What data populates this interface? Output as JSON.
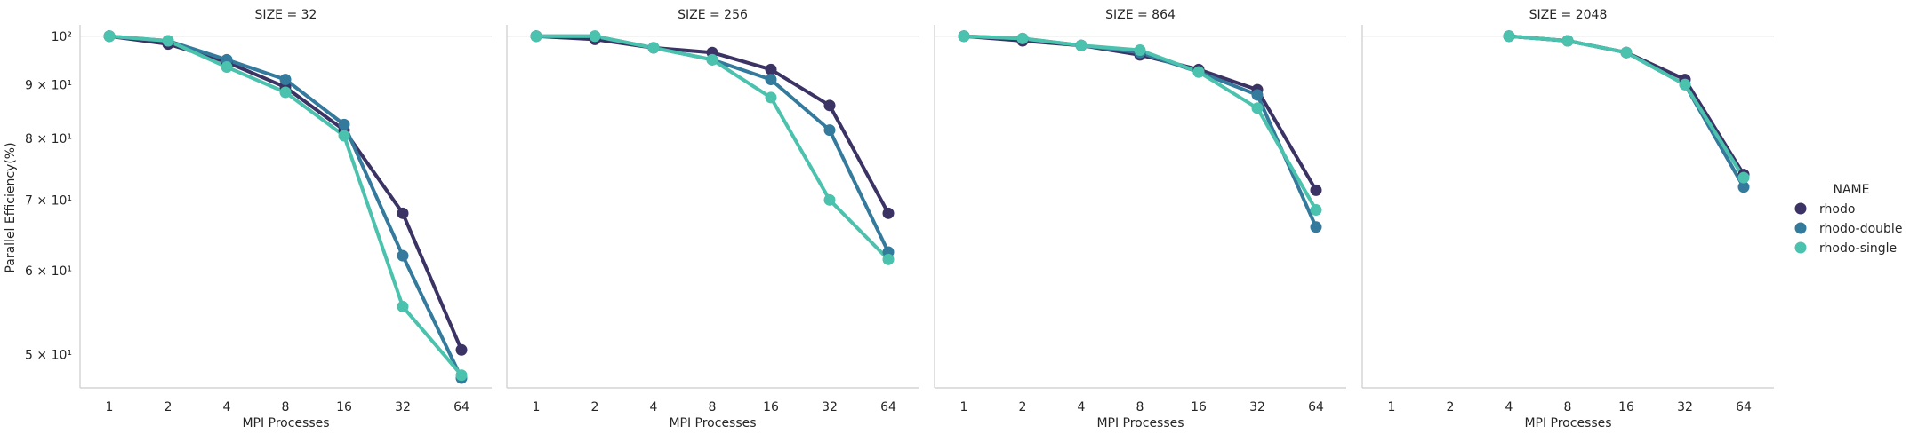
{
  "figure": {
    "ylabel": "Parallel Efficiency(%)",
    "legend_title": "NAME",
    "legend_placement": "right"
  },
  "chart_data": {
    "type": "line",
    "facet_variable": "SIZE",
    "categories": [
      "1",
      "2",
      "4",
      "8",
      "16",
      "32",
      "64"
    ],
    "xlabel": "MPI Processes",
    "ylabel": "Parallel Efficiency(%)",
    "yscale": "log",
    "ylim": [
      46.5,
      102.5
    ],
    "y_ticks": [
      {
        "value": 50,
        "label": "5 × 10¹"
      },
      {
        "value": 60,
        "label": "6 × 10¹"
      },
      {
        "value": 70,
        "label": "7 × 10¹"
      },
      {
        "value": 80,
        "label": "8 × 10¹"
      },
      {
        "value": 90,
        "label": "9 × 10¹"
      },
      {
        "value": 100,
        "label": "10²"
      }
    ],
    "grid": "horizontal-major",
    "series_colors": {
      "rhodo": "#3b3364",
      "rhodo-double": "#337a9c",
      "rhodo-single": "#4bc2ad"
    },
    "panels": [
      {
        "title": "SIZE = 32",
        "series": [
          {
            "name": "rhodo",
            "values": [
              100,
              98.3,
              94.5,
              89.5,
              81.5,
              68.0,
              50.5
            ]
          },
          {
            "name": "rhodo-double",
            "values": [
              100,
              99.0,
              95.0,
              91.0,
              82.5,
              62.0,
              47.5
            ]
          },
          {
            "name": "rhodo-single",
            "values": [
              100,
              99.0,
              93.5,
              88.5,
              80.5,
              55.5,
              47.8
            ]
          }
        ]
      },
      {
        "title": "SIZE = 256",
        "series": [
          {
            "name": "rhodo",
            "values": [
              100,
              99.3,
              97.5,
              96.5,
              93.0,
              86.0,
              68.0
            ]
          },
          {
            "name": "rhodo-double",
            "values": [
              100,
              100.0,
              97.5,
              95.0,
              91.0,
              81.5,
              62.5
            ]
          },
          {
            "name": "rhodo-single",
            "values": [
              100,
              100.0,
              97.5,
              95.0,
              87.5,
              70.0,
              61.5
            ]
          }
        ]
      },
      {
        "title": "SIZE = 864",
        "series": [
          {
            "name": "rhodo",
            "values": [
              100,
              99.0,
              98.0,
              96.0,
              93.0,
              89.0,
              71.5
            ]
          },
          {
            "name": "rhodo-double",
            "values": [
              100,
              99.5,
              98.0,
              96.5,
              92.5,
              88.0,
              66.0
            ]
          },
          {
            "name": "rhodo-single",
            "values": [
              100,
              99.5,
              98.0,
              97.0,
              92.5,
              85.5,
              68.5
            ]
          }
        ]
      },
      {
        "title": "SIZE = 2048",
        "series": [
          {
            "name": "rhodo",
            "values": [
              null,
              null,
              100,
              99.0,
              96.5,
              91.0,
              74.0
            ]
          },
          {
            "name": "rhodo-double",
            "values": [
              null,
              null,
              100,
              99.0,
              96.5,
              90.0,
              72.0
            ]
          },
          {
            "name": "rhodo-single",
            "values": [
              null,
              null,
              100,
              99.0,
              96.5,
              90.0,
              73.5
            ]
          }
        ]
      }
    ]
  }
}
